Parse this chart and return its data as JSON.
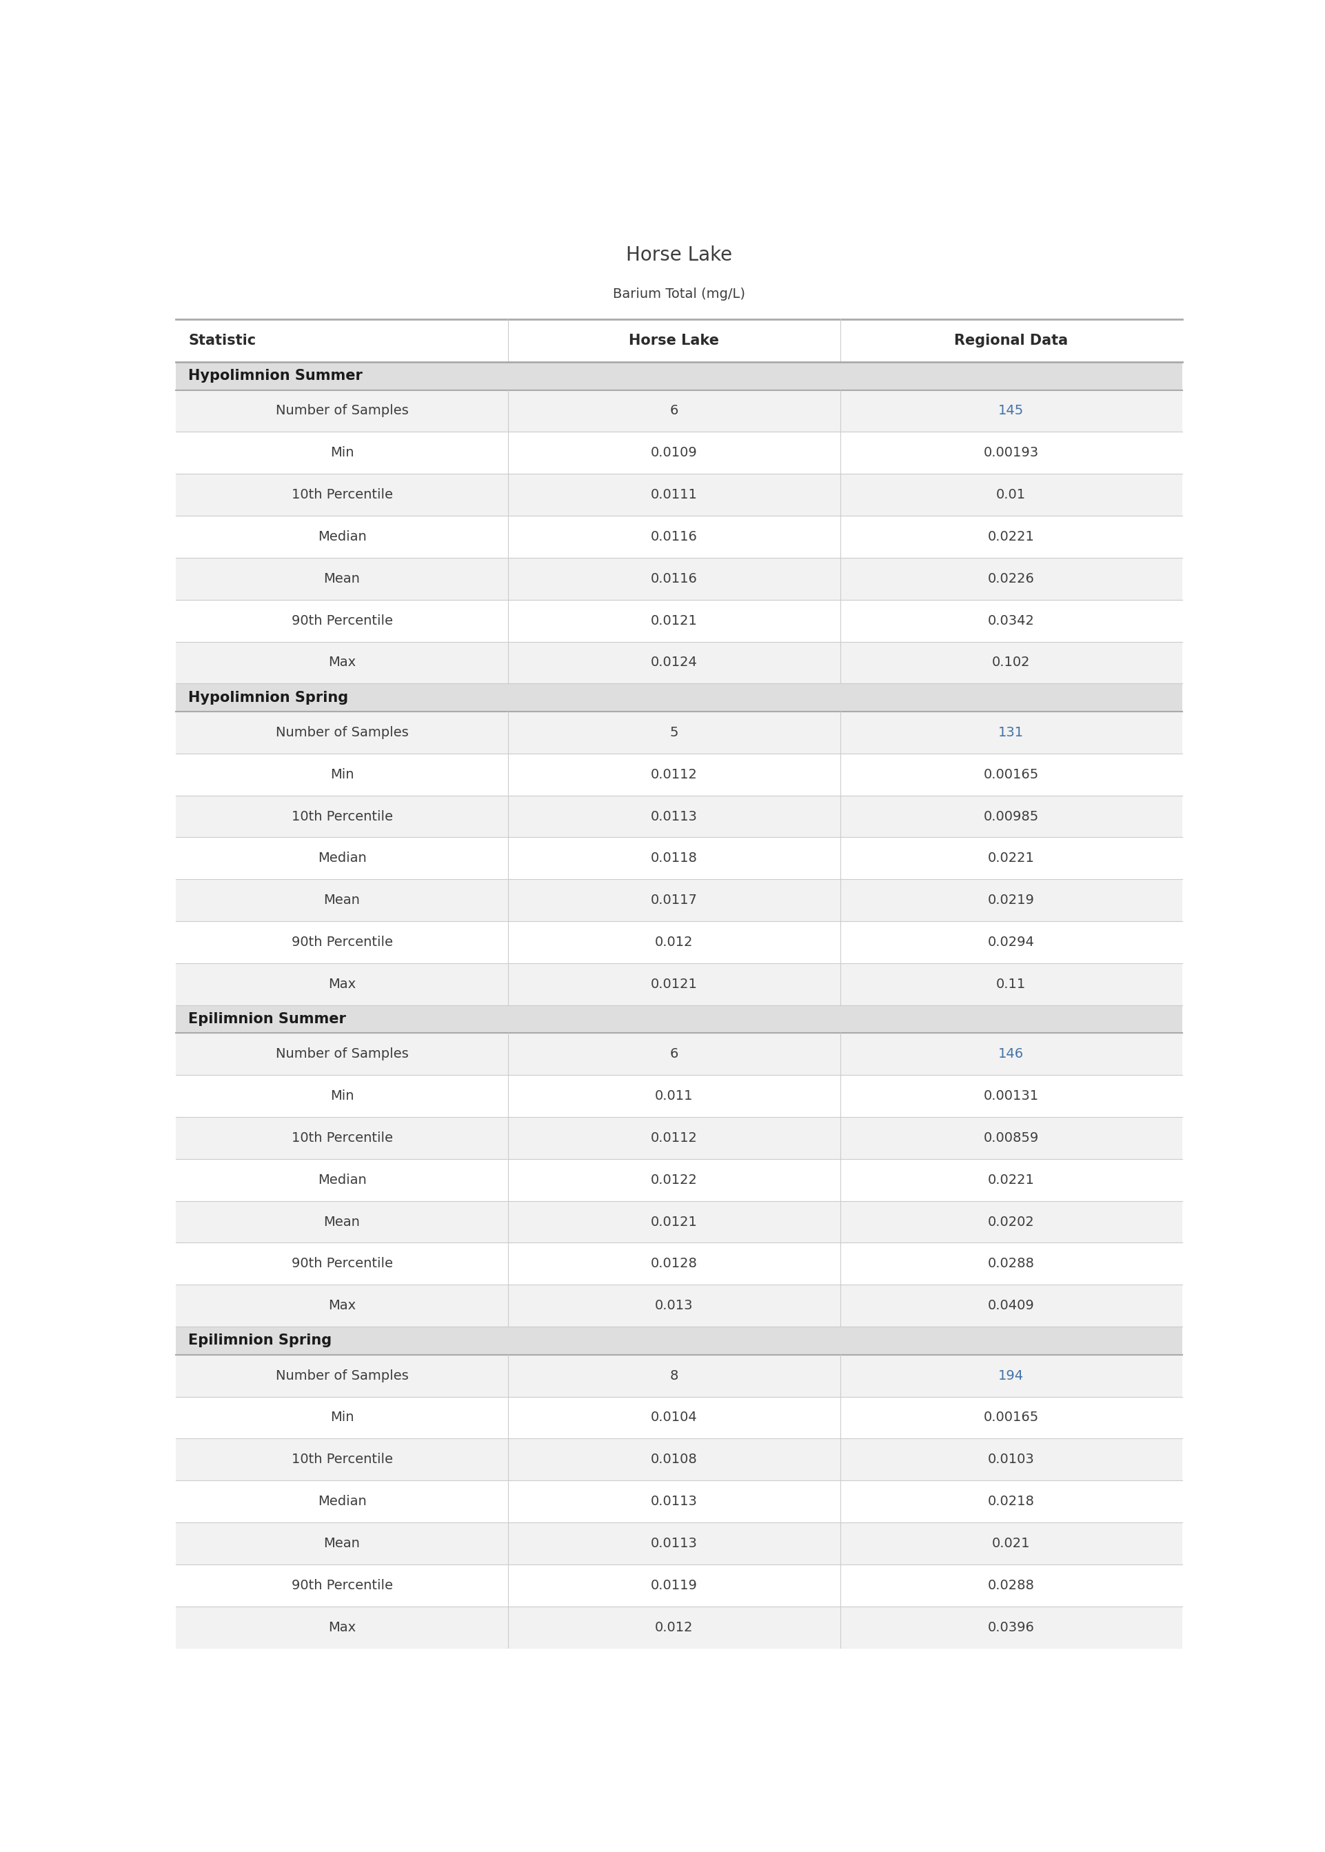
{
  "title": "Horse Lake",
  "subtitle": "Barium Total (mg/L)",
  "col_headers": [
    "Statistic",
    "Horse Lake",
    "Regional Data"
  ],
  "sections": [
    {
      "name": "Hypolimnion Summer",
      "rows": [
        [
          "Number of Samples",
          "6",
          "145"
        ],
        [
          "Min",
          "0.0109",
          "0.00193"
        ],
        [
          "10th Percentile",
          "0.0111",
          "0.01"
        ],
        [
          "Median",
          "0.0116",
          "0.0221"
        ],
        [
          "Mean",
          "0.0116",
          "0.0226"
        ],
        [
          "90th Percentile",
          "0.0121",
          "0.0342"
        ],
        [
          "Max",
          "0.0124",
          "0.102"
        ]
      ]
    },
    {
      "name": "Hypolimnion Spring",
      "rows": [
        [
          "Number of Samples",
          "5",
          "131"
        ],
        [
          "Min",
          "0.0112",
          "0.00165"
        ],
        [
          "10th Percentile",
          "0.0113",
          "0.00985"
        ],
        [
          "Median",
          "0.0118",
          "0.0221"
        ],
        [
          "Mean",
          "0.0117",
          "0.0219"
        ],
        [
          "90th Percentile",
          "0.012",
          "0.0294"
        ],
        [
          "Max",
          "0.0121",
          "0.11"
        ]
      ]
    },
    {
      "name": "Epilimnion Summer",
      "rows": [
        [
          "Number of Samples",
          "6",
          "146"
        ],
        [
          "Min",
          "0.011",
          "0.00131"
        ],
        [
          "10th Percentile",
          "0.0112",
          "0.00859"
        ],
        [
          "Median",
          "0.0122",
          "0.0221"
        ],
        [
          "Mean",
          "0.0121",
          "0.0202"
        ],
        [
          "90th Percentile",
          "0.0128",
          "0.0288"
        ],
        [
          "Max",
          "0.013",
          "0.0409"
        ]
      ]
    },
    {
      "name": "Epilimnion Spring",
      "rows": [
        [
          "Number of Samples",
          "8",
          "194"
        ],
        [
          "Min",
          "0.0104",
          "0.00165"
        ],
        [
          "10th Percentile",
          "0.0108",
          "0.0103"
        ],
        [
          "Median",
          "0.0113",
          "0.0218"
        ],
        [
          "Mean",
          "0.0113",
          "0.021"
        ],
        [
          "90th Percentile",
          "0.0119",
          "0.0288"
        ],
        [
          "Max",
          "0.012",
          "0.0396"
        ]
      ]
    }
  ],
  "title_color": "#3d3d3d",
  "subtitle_color": "#3d3d3d",
  "header_text_color": "#2b2b2b",
  "section_bg_color": "#dedede",
  "section_text_color": "#1a1a1a",
  "row_bg_even": "#f2f2f2",
  "row_bg_odd": "#ffffff",
  "stat_text_color": "#3d3d3d",
  "value_color_normal": "#3d3d3d",
  "value_color_samples": "#4472a8",
  "divider_color": "#cccccc",
  "header_divider_color": "#aaaaaa",
  "top_line_color": "#aaaaaa",
  "title_fontsize": 20,
  "subtitle_fontsize": 14,
  "header_fontsize": 15,
  "section_fontsize": 15,
  "cell_fontsize": 14
}
